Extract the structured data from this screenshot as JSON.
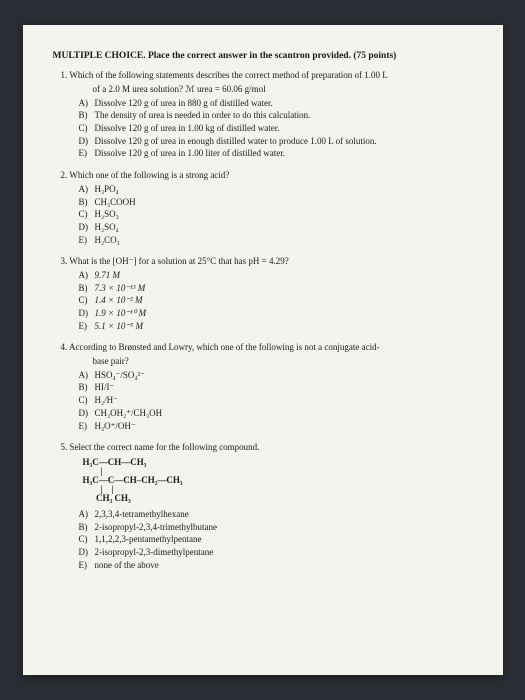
{
  "header": "MULTIPLE CHOICE. Place the correct answer in the scantron provided. (75 points)",
  "q1": {
    "num": "1.",
    "text1": "Which of the following statements describes the correct method of preparation of 1.00 L",
    "text2": "of a 2.0 M urea solution?  ℳ urea = 60.06 g/mol",
    "A": "Dissolve 120 g of urea in 880 g of distilled water.",
    "B": "The density of urea is needed in order to do this calculation.",
    "C": "Dissolve 120 g of urea in 1.00 kg of distilled water.",
    "D": "Dissolve 120 g of urea in enough distilled water to produce 1.00 L of solution.",
    "E": "Dissolve 120 g of urea in 1.00 liter of distilled water."
  },
  "q2": {
    "num": "2.",
    "text": "Which one of the following is a strong acid?",
    "A": "H₃PO₄",
    "B": "CH₃COOH",
    "C": "H₂SO₃",
    "D": "H₂SO₄",
    "E": "H₂CO₃"
  },
  "q3": {
    "num": "3.",
    "text": "What is the [OH⁻] for a solution at 25°C that has pH = 4.29?",
    "A": "9.71 M",
    "B": "7.3 × 10⁻¹³ M",
    "C": "1.4 × 10⁻² M",
    "D": "1.9 × 10⁻¹⁰ M",
    "E": "5.1 × 10⁻⁵ M"
  },
  "q4": {
    "num": "4.",
    "text1": "According to Brønsted and Lowry, which one of the following is not a conjugate acid-",
    "text2": "base pair?",
    "A": "HSO₄⁻/SO₄²⁻",
    "B": "HI/I⁻",
    "C": "H₂/H⁻",
    "D": "CH₃OH₂⁺/CH₃OH",
    "E": "H₃O⁺/OH⁻"
  },
  "q5": {
    "num": "5.",
    "text": "Select the correct name for the following compound.",
    "struct_r1": "H₃C—CH—CH₃",
    "struct_r2": "        |",
    "struct_r3": "H₃C—C—CH–CH₂—CH₃",
    "struct_r4": "        |    |",
    "struct_r5": "      CH₃ CH₃",
    "A": "2,3,3,4-tetramethylhexane",
    "B": "2-isopropyl-2,3,4-trimethylbutane",
    "C": "1,1,2,2,3-pentamethylpentane",
    "D": "2-isopropyl-2,3-dimethylpentane",
    "E": "none of the above"
  },
  "letters": {
    "A": "A)",
    "B": "B)",
    "C": "C)",
    "D": "D)",
    "E": "E)"
  }
}
